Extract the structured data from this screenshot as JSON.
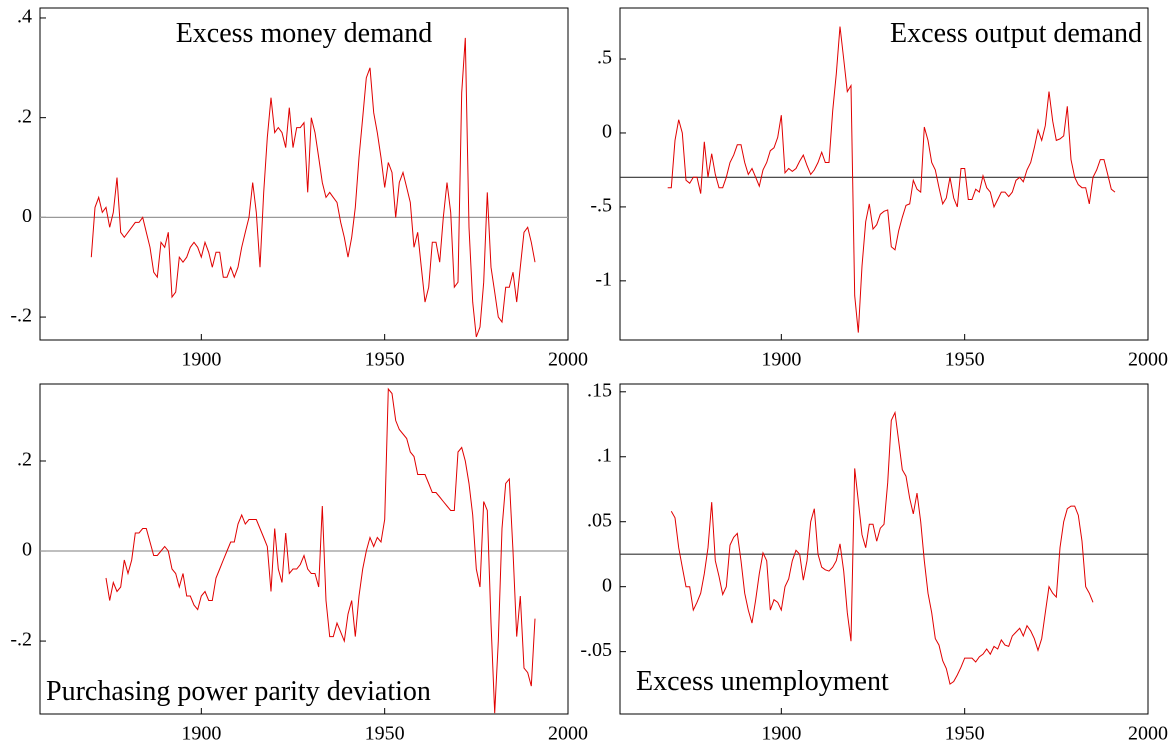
{
  "chart_data": [
    {
      "type": "line",
      "title": "Excess money demand",
      "title_position": "top-center",
      "color": "#e00000",
      "hline": 0,
      "hline_color": "#999999",
      "xlim": [
        1856,
        2000
      ],
      "xticks": [
        1900,
        1950,
        2000
      ],
      "ylim": [
        -0.246,
        0.42
      ],
      "yticks": [
        {
          "value": -0.2,
          "label": "-.2"
        },
        0,
        {
          "value": 0.2,
          "label": ".2"
        },
        {
          "value": 0.4,
          "label": ".4"
        }
      ],
      "x": [
        1870,
        1871,
        1872,
        1873,
        1874,
        1875,
        1876,
        1877,
        1878,
        1879,
        1880,
        1881,
        1882,
        1883,
        1884,
        1885,
        1886,
        1887,
        1888,
        1889,
        1890,
        1891,
        1892,
        1893,
        1894,
        1895,
        1896,
        1897,
        1898,
        1899,
        1900,
        1901,
        1902,
        1903,
        1904,
        1905,
        1906,
        1907,
        1908,
        1909,
        1910,
        1911,
        1912,
        1913,
        1914,
        1915,
        1916,
        1917,
        1918,
        1919,
        1920,
        1921,
        1922,
        1923,
        1924,
        1925,
        1926,
        1927,
        1928,
        1929,
        1930,
        1931,
        1932,
        1933,
        1934,
        1935,
        1936,
        1937,
        1938,
        1939,
        1940,
        1941,
        1942,
        1943,
        1944,
        1945,
        1946,
        1947,
        1948,
        1949,
        1950,
        1951,
        1952,
        1953,
        1954,
        1955,
        1956,
        1957,
        1958,
        1959,
        1960,
        1961,
        1962,
        1963,
        1964,
        1965,
        1966,
        1967,
        1968,
        1969,
        1970,
        1971,
        1972,
        1973,
        1974,
        1975,
        1976,
        1977,
        1978,
        1979,
        1980,
        1981,
        1982,
        1983,
        1984,
        1985,
        1986,
        1987,
        1988,
        1989,
        1990,
        1991
      ],
      "values": [
        -0.08,
        0.02,
        0.04,
        0.01,
        0.02,
        -0.02,
        0.01,
        0.08,
        -0.03,
        -0.04,
        -0.03,
        -0.02,
        -0.01,
        -0.01,
        0.0,
        -0.03,
        -0.06,
        -0.11,
        -0.12,
        -0.05,
        -0.06,
        -0.03,
        -0.16,
        -0.15,
        -0.08,
        -0.09,
        -0.08,
        -0.06,
        -0.05,
        -0.06,
        -0.08,
        -0.05,
        -0.07,
        -0.1,
        -0.07,
        -0.07,
        -0.12,
        -0.12,
        -0.1,
        -0.12,
        -0.1,
        -0.06,
        -0.03,
        0.0,
        0.07,
        0.01,
        -0.1,
        0.05,
        0.16,
        0.24,
        0.17,
        0.18,
        0.17,
        0.14,
        0.22,
        0.14,
        0.18,
        0.18,
        0.19,
        0.05,
        0.2,
        0.17,
        0.12,
        0.07,
        0.04,
        0.05,
        0.04,
        0.03,
        -0.01,
        -0.04,
        -0.08,
        -0.04,
        0.02,
        0.12,
        0.2,
        0.28,
        0.3,
        0.21,
        0.17,
        0.12,
        0.06,
        0.11,
        0.09,
        0.0,
        0.07,
        0.09,
        0.06,
        0.03,
        -0.06,
        -0.03,
        -0.1,
        -0.17,
        -0.14,
        -0.05,
        -0.05,
        -0.09,
        0.0,
        0.07,
        0.01,
        -0.14,
        -0.13,
        0.25,
        0.36,
        -0.02,
        -0.17,
        -0.24,
        -0.22,
        -0.13,
        0.05,
        -0.1,
        -0.15,
        -0.2,
        -0.21,
        -0.14,
        -0.14,
        -0.11,
        -0.17,
        -0.1,
        -0.03,
        -0.02,
        -0.05,
        -0.09
      ]
    },
    {
      "type": "line",
      "title": "Excess output demand",
      "title_position": "top-right",
      "color": "#e00000",
      "hline": -0.3,
      "hline_color": "#333333",
      "xlim": [
        1856,
        2000
      ],
      "xticks": [
        1900,
        1950,
        2000
      ],
      "ylim": [
        -1.4,
        0.845
      ],
      "yticks": [
        -1,
        {
          "value": -0.5,
          "label": "-.5"
        },
        0,
        {
          "value": 0.5,
          "label": ".5"
        }
      ],
      "x": [
        1869,
        1870,
        1871,
        1872,
        1873,
        1874,
        1875,
        1876,
        1877,
        1878,
        1879,
        1880,
        1881,
        1882,
        1883,
        1884,
        1885,
        1886,
        1887,
        1888,
        1889,
        1890,
        1891,
        1892,
        1893,
        1894,
        1895,
        1896,
        1897,
        1898,
        1899,
        1900,
        1901,
        1902,
        1903,
        1904,
        1905,
        1906,
        1907,
        1908,
        1909,
        1910,
        1911,
        1912,
        1913,
        1914,
        1915,
        1916,
        1917,
        1918,
        1919,
        1920,
        1921,
        1922,
        1923,
        1924,
        1925,
        1926,
        1927,
        1928,
        1929,
        1930,
        1931,
        1932,
        1933,
        1934,
        1935,
        1936,
        1937,
        1938,
        1939,
        1940,
        1941,
        1942,
        1943,
        1944,
        1945,
        1946,
        1947,
        1948,
        1949,
        1950,
        1951,
        1952,
        1953,
        1954,
        1955,
        1956,
        1957,
        1958,
        1959,
        1960,
        1961,
        1962,
        1963,
        1964,
        1965,
        1966,
        1967,
        1968,
        1969,
        1970,
        1971,
        1972,
        1973,
        1974,
        1975,
        1976,
        1977,
        1978,
        1979,
        1980,
        1981,
        1982,
        1983,
        1984,
        1985,
        1986,
        1987,
        1988,
        1989,
        1990,
        1991
      ],
      "values": [
        -0.37,
        -0.37,
        -0.05,
        0.09,
        0.0,
        -0.32,
        -0.34,
        -0.3,
        -0.3,
        -0.41,
        -0.06,
        -0.3,
        -0.14,
        -0.28,
        -0.37,
        -0.37,
        -0.3,
        -0.2,
        -0.15,
        -0.08,
        -0.08,
        -0.2,
        -0.28,
        -0.24,
        -0.3,
        -0.36,
        -0.25,
        -0.2,
        -0.12,
        -0.1,
        -0.03,
        0.12,
        -0.27,
        -0.24,
        -0.26,
        -0.24,
        -0.19,
        -0.15,
        -0.22,
        -0.28,
        -0.25,
        -0.2,
        -0.13,
        -0.2,
        -0.2,
        0.15,
        0.4,
        0.72,
        0.5,
        0.28,
        0.32,
        -1.1,
        -1.35,
        -0.9,
        -0.6,
        -0.48,
        -0.65,
        -0.62,
        -0.55,
        -0.53,
        -0.52,
        -0.77,
        -0.79,
        -0.66,
        -0.57,
        -0.49,
        -0.48,
        -0.32,
        -0.38,
        -0.4,
        0.04,
        -0.05,
        -0.2,
        -0.25,
        -0.37,
        -0.48,
        -0.44,
        -0.3,
        -0.44,
        -0.5,
        -0.24,
        -0.24,
        -0.45,
        -0.45,
        -0.38,
        -0.4,
        -0.29,
        -0.37,
        -0.4,
        -0.5,
        -0.45,
        -0.4,
        -0.4,
        -0.43,
        -0.4,
        -0.32,
        -0.3,
        -0.33,
        -0.25,
        -0.2,
        -0.1,
        0.02,
        -0.05,
        0.05,
        0.28,
        0.08,
        -0.05,
        -0.04,
        -0.02,
        0.18,
        -0.18,
        -0.3,
        -0.35,
        -0.37,
        -0.37,
        -0.48,
        -0.3,
        -0.25,
        -0.18,
        -0.18,
        -0.28,
        -0.38,
        -0.4
      ]
    },
    {
      "type": "line",
      "title": "Purchasing power parity deviation",
      "title_position": "bottom-left",
      "color": "#e00000",
      "hline": 0,
      "hline_color": "#999999",
      "xlim": [
        1856,
        2000
      ],
      "xticks": [
        1900,
        1950,
        2000
      ],
      "ylim": [
        -0.362,
        0.371
      ],
      "yticks": [
        {
          "value": -0.2,
          "label": "-.2"
        },
        0,
        {
          "value": 0.2,
          "label": ".2"
        }
      ],
      "x": [
        1874,
        1875,
        1876,
        1877,
        1878,
        1879,
        1880,
        1881,
        1882,
        1883,
        1884,
        1885,
        1886,
        1887,
        1888,
        1889,
        1890,
        1891,
        1892,
        1893,
        1894,
        1895,
        1896,
        1897,
        1898,
        1899,
        1900,
        1901,
        1902,
        1903,
        1904,
        1905,
        1906,
        1907,
        1908,
        1909,
        1910,
        1911,
        1912,
        1913,
        1914,
        1915,
        1916,
        1917,
        1918,
        1919,
        1920,
        1921,
        1922,
        1923,
        1924,
        1925,
        1926,
        1927,
        1928,
        1929,
        1930,
        1931,
        1932,
        1933,
        1934,
        1935,
        1936,
        1937,
        1938,
        1939,
        1940,
        1941,
        1942,
        1943,
        1944,
        1945,
        1946,
        1947,
        1948,
        1949,
        1950,
        1951,
        1952,
        1953,
        1954,
        1955,
        1956,
        1957,
        1958,
        1959,
        1960,
        1961,
        1962,
        1963,
        1964,
        1965,
        1966,
        1967,
        1968,
        1969,
        1970,
        1971,
        1972,
        1973,
        1974,
        1975,
        1976,
        1977,
        1978,
        1979,
        1980,
        1981,
        1982,
        1983,
        1984,
        1985,
        1986,
        1987,
        1988,
        1989,
        1990,
        1991
      ],
      "values": [
        -0.06,
        -0.11,
        -0.07,
        -0.09,
        -0.08,
        -0.02,
        -0.05,
        -0.02,
        0.04,
        0.04,
        0.05,
        0.05,
        0.02,
        -0.01,
        -0.01,
        0.0,
        0.01,
        0.0,
        -0.04,
        -0.05,
        -0.08,
        -0.05,
        -0.1,
        -0.1,
        -0.12,
        -0.13,
        -0.1,
        -0.09,
        -0.11,
        -0.11,
        -0.06,
        -0.04,
        -0.02,
        0.0,
        0.02,
        0.02,
        0.06,
        0.08,
        0.06,
        0.07,
        0.07,
        0.07,
        0.05,
        0.03,
        0.01,
        -0.09,
        0.05,
        -0.04,
        -0.07,
        0.04,
        -0.05,
        -0.04,
        -0.04,
        -0.03,
        -0.01,
        -0.04,
        -0.05,
        -0.05,
        -0.08,
        0.1,
        -0.11,
        -0.19,
        -0.19,
        -0.16,
        -0.18,
        -0.2,
        -0.14,
        -0.11,
        -0.19,
        -0.1,
        -0.04,
        0.0,
        0.03,
        0.01,
        0.03,
        0.02,
        0.07,
        0.36,
        0.35,
        0.29,
        0.27,
        0.26,
        0.25,
        0.22,
        0.21,
        0.17,
        0.17,
        0.17,
        0.15,
        0.13,
        0.13,
        0.12,
        0.11,
        0.1,
        0.09,
        0.09,
        0.22,
        0.23,
        0.2,
        0.15,
        0.08,
        -0.04,
        -0.08,
        0.11,
        0.09,
        -0.16,
        -0.36,
        -0.2,
        0.05,
        0.15,
        0.16,
        0.0,
        -0.19,
        -0.1,
        -0.26,
        -0.27,
        -0.3,
        -0.15
      ]
    },
    {
      "type": "line",
      "title": "Excess unemployment",
      "title_position": "bottom-left",
      "color": "#e00000",
      "hline": 0.025,
      "hline_color": "#333333",
      "xlim": [
        1856,
        2000
      ],
      "xticks": [
        1900,
        1950,
        2000
      ],
      "ylim": [
        -0.098,
        0.156
      ],
      "yticks": [
        {
          "value": -0.05,
          "label": "-.05"
        },
        0,
        {
          "value": 0.05,
          "label": ".05"
        },
        {
          "value": 0.1,
          "label": ".1"
        },
        {
          "value": 0.15,
          "label": ".15"
        }
      ],
      "x": [
        1870,
        1871,
        1872,
        1873,
        1874,
        1875,
        1876,
        1877,
        1878,
        1879,
        1880,
        1881,
        1882,
        1883,
        1884,
        1885,
        1886,
        1887,
        1888,
        1889,
        1890,
        1891,
        1892,
        1893,
        1894,
        1895,
        1896,
        1897,
        1898,
        1899,
        1900,
        1901,
        1902,
        1903,
        1904,
        1905,
        1906,
        1907,
        1908,
        1909,
        1910,
        1911,
        1912,
        1913,
        1914,
        1915,
        1916,
        1917,
        1918,
        1919,
        1920,
        1921,
        1922,
        1923,
        1924,
        1925,
        1926,
        1927,
        1928,
        1929,
        1930,
        1931,
        1932,
        1933,
        1934,
        1935,
        1936,
        1937,
        1938,
        1939,
        1940,
        1941,
        1942,
        1943,
        1944,
        1945,
        1946,
        1947,
        1948,
        1949,
        1950,
        1951,
        1952,
        1953,
        1954,
        1955,
        1956,
        1957,
        1958,
        1959,
        1960,
        1961,
        1962,
        1963,
        1964,
        1965,
        1966,
        1967,
        1968,
        1969,
        1970,
        1971,
        1972,
        1973,
        1974,
        1975,
        1976,
        1977,
        1978,
        1979,
        1980,
        1981,
        1982,
        1983,
        1984,
        1985
      ],
      "values": [
        0.058,
        0.053,
        0.03,
        0.015,
        0.0,
        0.0,
        -0.018,
        -0.012,
        -0.005,
        0.01,
        0.03,
        0.065,
        0.02,
        0.008,
        -0.006,
        0.0,
        0.032,
        0.038,
        0.041,
        0.02,
        -0.005,
        -0.018,
        -0.028,
        -0.01,
        0.01,
        0.026,
        0.02,
        -0.018,
        -0.01,
        -0.012,
        -0.018,
        0.0,
        0.006,
        0.02,
        0.028,
        0.025,
        0.005,
        0.02,
        0.05,
        0.06,
        0.025,
        0.015,
        0.013,
        0.012,
        0.015,
        0.02,
        0.033,
        0.012,
        -0.02,
        -0.042,
        0.091,
        0.066,
        0.04,
        0.03,
        0.048,
        0.048,
        0.035,
        0.045,
        0.048,
        0.08,
        0.128,
        0.134,
        0.112,
        0.09,
        0.085,
        0.068,
        0.056,
        0.072,
        0.05,
        0.02,
        -0.005,
        -0.02,
        -0.04,
        -0.045,
        -0.057,
        -0.063,
        -0.075,
        -0.073,
        -0.068,
        -0.062,
        -0.055,
        -0.055,
        -0.055,
        -0.058,
        -0.054,
        -0.052,
        -0.048,
        -0.052,
        -0.046,
        -0.048,
        -0.041,
        -0.045,
        -0.046,
        -0.038,
        -0.035,
        -0.032,
        -0.038,
        -0.03,
        -0.034,
        -0.04,
        -0.049,
        -0.04,
        -0.02,
        0.0,
        -0.005,
        -0.008,
        0.03,
        0.05,
        0.06,
        0.062,
        0.062,
        0.055,
        0.035,
        0.0,
        -0.005,
        -0.012
      ]
    }
  ]
}
